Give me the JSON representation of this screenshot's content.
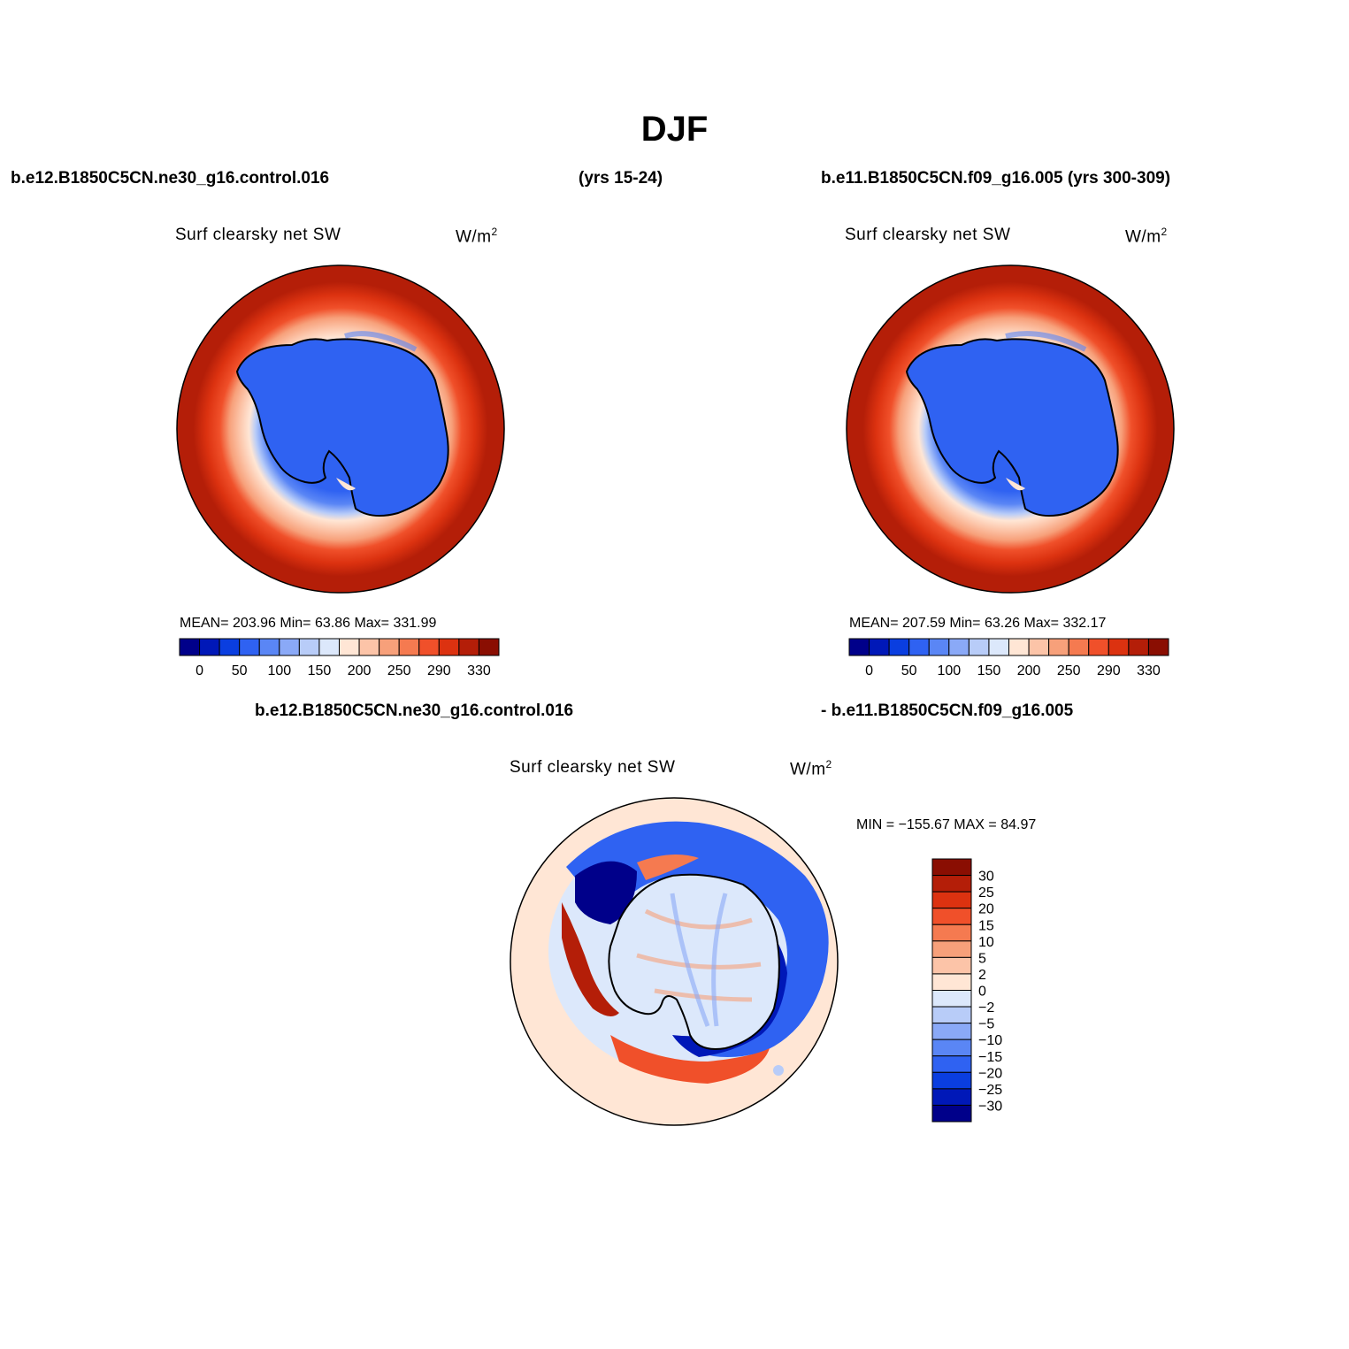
{
  "title": "DJF",
  "case1": "b.e12.B1850C5CN.ne30_g16.control.016",
  "case1_yrs": "(yrs 15-24)",
  "case2": "b.e11.B1850C5CN.f09_g16.005 (yrs 300-309)",
  "diff_case1": "b.e12.B1850C5CN.ne30_g16.control.016",
  "diff_case2": "- b.e11.B1850C5CN.f09_g16.005",
  "panels": [
    {
      "variable": "Surf clearsky net SW",
      "units": "W/m",
      "units_sup": "2",
      "stats": "MEAN= 203.96   Min=   63.86   Max= 331.99"
    },
    {
      "variable": "Surf clearsky net SW",
      "units": "W/m",
      "units_sup": "2",
      "stats": "MEAN= 207.59   Min=   63.26   Max= 332.17"
    },
    {
      "variable": "Surf clearsky net SW",
      "units": "W/m",
      "units_sup": "2",
      "stats": "MIN = −155.67  MAX =   84.97"
    }
  ],
  "colorbar_abs": {
    "labels": [
      "0",
      "50",
      "100",
      "150",
      "200",
      "250",
      "290",
      "330"
    ],
    "colors": [
      "#00008a",
      "#0018b8",
      "#0a3ee0",
      "#2f62f2",
      "#5a86f5",
      "#8aa9f7",
      "#b8ccf8",
      "#dce8fb",
      "#ffe6d5",
      "#fcc4a8",
      "#f7a07a",
      "#f57a50",
      "#f0502a",
      "#dc3210",
      "#b41e08",
      "#8a0e02"
    ]
  },
  "colorbar_diff": {
    "labels": [
      "30",
      "25",
      "20",
      "15",
      "10",
      "5",
      "2",
      "0",
      "−2",
      "−5",
      "−10",
      "−15",
      "−20",
      "−25",
      "−30"
    ],
    "colors": [
      "#8a0e02",
      "#b41e08",
      "#dc3210",
      "#f0502a",
      "#f57a50",
      "#f7a07a",
      "#fcc4a8",
      "#ffe6d5",
      "#dce8fb",
      "#b8ccf8",
      "#8aa9f7",
      "#5a86f5",
      "#2f62f2",
      "#0a3ee0",
      "#0018b8",
      "#00008a"
    ]
  }
}
